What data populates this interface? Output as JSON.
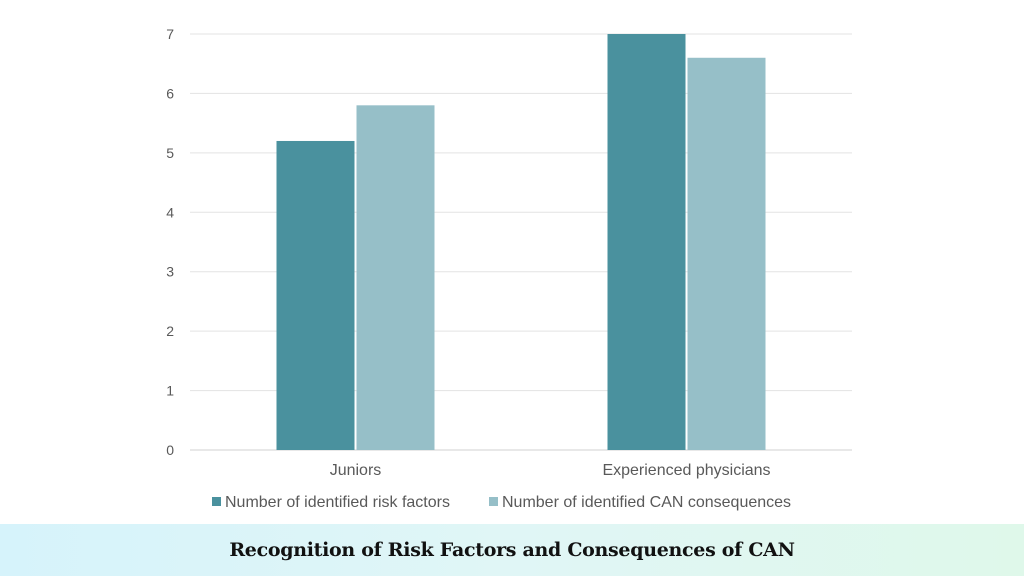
{
  "chart_data": {
    "type": "bar",
    "categories": [
      "Juniors",
      "Experienced physicians"
    ],
    "series": [
      {
        "name": "Number of identified risk factors",
        "values": [
          5.2,
          7.0
        ],
        "color": "#4a919e"
      },
      {
        "name": "Number of identified CAN consequences",
        "values": [
          5.8,
          6.6
        ],
        "color": "#96bfc8"
      }
    ],
    "yticks": [
      "0",
      "1",
      "2",
      "3",
      "4",
      "5",
      "6",
      "7"
    ],
    "ylim": [
      0,
      7
    ],
    "grid": true,
    "legend_position": "bottom"
  },
  "footer": {
    "title": "Recognition of Risk Factors and Consequences of CAN"
  }
}
